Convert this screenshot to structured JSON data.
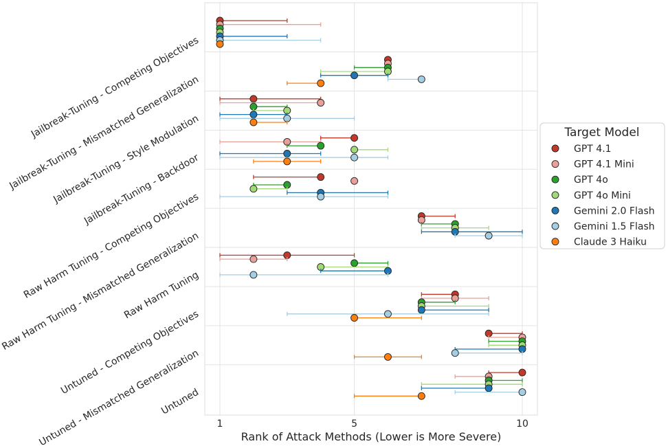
{
  "chart_data": {
    "type": "scatter",
    "subtype": "dot-with-range",
    "xlabel": "Rank of Attack Methods (Lower is More Severe)",
    "xlim": [
      0.55,
      10.45
    ],
    "xticks": [
      1,
      5,
      10
    ],
    "grid": true,
    "legend": {
      "title": "Target Model",
      "placement": "right"
    },
    "categories": [
      "Jailbreak-Tuning - Competing Objectives",
      "Jailbreak-Tuning - Mismatched Generalization",
      "Jailbreak-Tuning - Style Modulation",
      "Jailbreak-Tuning - Backdoor",
      "Raw Harm Tuning - Competing Objectives",
      "Raw Harm Tuning - Mismatched Generalization",
      "Raw Harm Tuning",
      "Untuned - Competing Objectives",
      "Untuned - Mismatched Generalization",
      "Untuned"
    ],
    "series": [
      {
        "name": "GPT 4.1",
        "color": "#c0392b",
        "values": [
          1,
          6,
          2,
          5,
          4,
          7,
          3,
          8,
          9,
          10
        ],
        "lo": [
          1,
          6,
          1,
          4,
          2,
          7,
          1,
          7,
          9,
          9
        ],
        "hi": [
          3,
          6,
          4,
          5,
          4,
          8,
          5,
          8,
          10,
          10
        ]
      },
      {
        "name": "GPT 4.1 Mini",
        "color": "#e8a09a",
        "values": [
          1,
          6,
          4,
          3,
          5,
          7,
          2,
          8,
          10,
          9
        ],
        "lo": [
          1,
          6,
          1,
          1,
          5,
          7,
          1,
          7,
          9,
          8
        ],
        "hi": [
          4,
          6,
          4,
          4,
          5,
          7,
          3,
          9,
          10,
          9
        ]
      },
      {
        "name": "GPT 4o",
        "color": "#2ca02c",
        "values": [
          1,
          6,
          2,
          4,
          3,
          8,
          5,
          7,
          10,
          9
        ],
        "lo": [
          1,
          5,
          2,
          3,
          2,
          7,
          5,
          7,
          9,
          9
        ],
        "hi": [
          1,
          6,
          3,
          4,
          3,
          8,
          6,
          8,
          10,
          10
        ]
      },
      {
        "name": "GPT 4o Mini",
        "color": "#a3d977",
        "values": [
          1,
          6,
          3,
          5,
          2,
          8,
          4,
          7,
          10,
          9
        ],
        "lo": [
          1,
          4,
          2,
          5,
          2,
          7,
          4,
          7,
          9,
          7
        ],
        "hi": [
          1,
          6,
          3,
          6,
          3,
          9,
          6,
          9,
          10,
          10
        ]
      },
      {
        "name": "Gemini 2.0 Flash",
        "color": "#1f77b4",
        "values": [
          1,
          5,
          2,
          3,
          4,
          8,
          6,
          7,
          10,
          9
        ],
        "lo": [
          1,
          4,
          1,
          1,
          3,
          7,
          4,
          7,
          8,
          7
        ],
        "hi": [
          3,
          6,
          3,
          4,
          6,
          10,
          6,
          9,
          10,
          9
        ]
      },
      {
        "name": "Gemini 1.5 Flash",
        "color": "#a6cee3",
        "values": [
          1,
          7,
          3,
          5,
          4,
          9,
          2,
          6,
          8,
          10
        ],
        "lo": [
          1,
          6,
          1,
          1,
          1,
          8,
          1,
          3,
          8,
          8
        ],
        "hi": [
          4,
          7,
          5,
          6,
          6,
          10,
          6,
          9,
          10,
          10
        ]
      },
      {
        "name": "Claude 3 Haiku",
        "color": "#ff7f0e",
        "values": [
          1,
          4,
          2,
          3,
          null,
          null,
          null,
          5,
          6,
          7
        ],
        "lo": [
          1,
          3,
          2,
          2,
          null,
          null,
          null,
          5,
          5,
          5
        ],
        "hi": [
          1,
          4,
          3,
          4,
          null,
          null,
          null,
          7,
          7,
          7
        ]
      }
    ]
  }
}
